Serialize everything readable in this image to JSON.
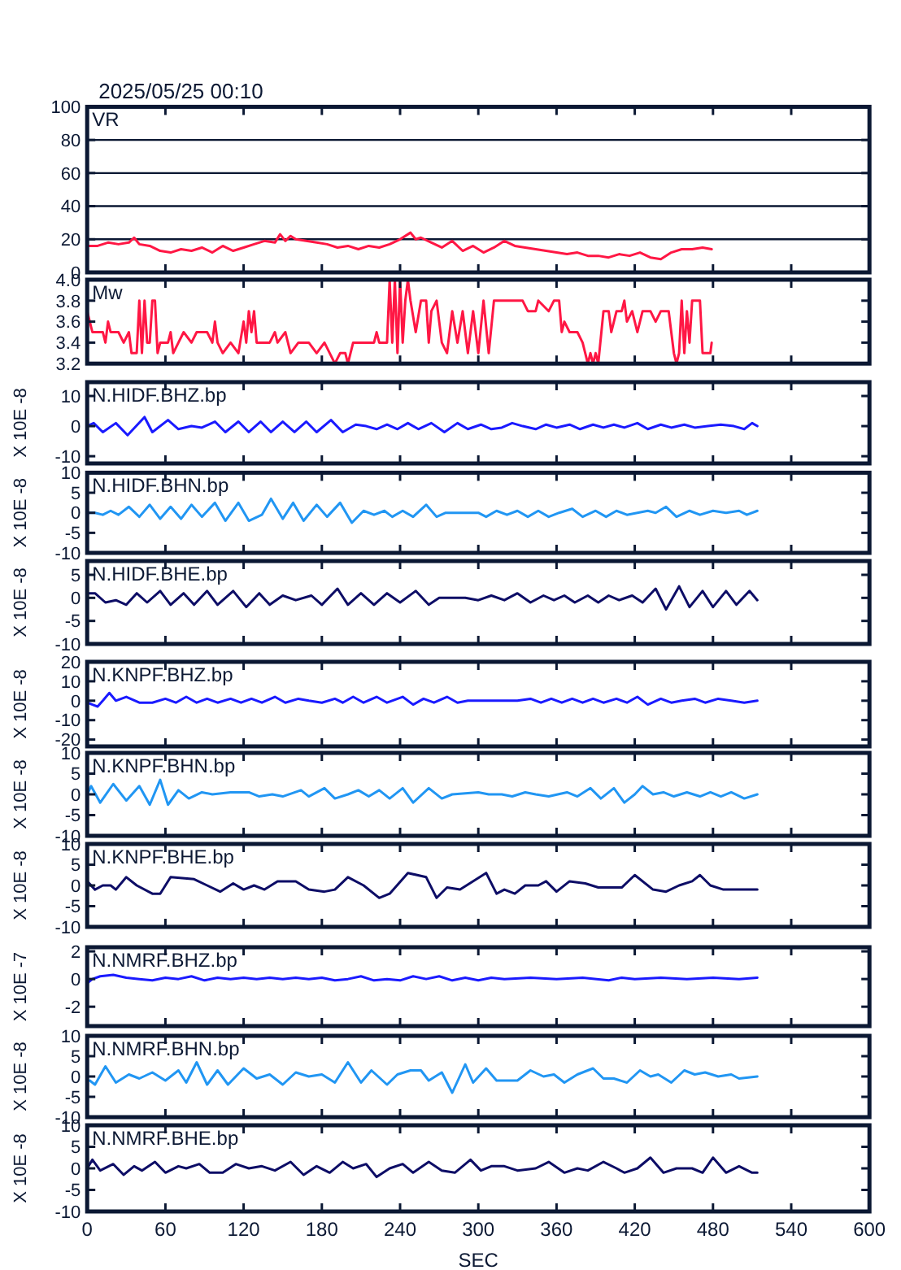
{
  "chart_data": [
    {
      "type": "line",
      "title": "2025/05/25 00:10",
      "xlim": [
        0,
        600
      ],
      "xticks": [
        0,
        60,
        120,
        180,
        240,
        300,
        360,
        420,
        480,
        540,
        600
      ],
      "ylim": [
        0,
        100
      ],
      "yticks": [
        0,
        20,
        40,
        60,
        80,
        100
      ],
      "grid": "y",
      "tick_labels": "y",
      "series": [
        {
          "name": "VR",
          "color": "#ff1744",
          "x": [
            0,
            8,
            16,
            24,
            32,
            36,
            40,
            48,
            56,
            64,
            72,
            80,
            88,
            96,
            104,
            112,
            120,
            128,
            136,
            144,
            148,
            152,
            156,
            160,
            168,
            176,
            184,
            192,
            200,
            208,
            216,
            224,
            232,
            240,
            248,
            252,
            256,
            264,
            272,
            280,
            288,
            296,
            304,
            312,
            320,
            328,
            336,
            344,
            352,
            360,
            368,
            376,
            384,
            392,
            400,
            408,
            416,
            424,
            432,
            440,
            448,
            456,
            464,
            472,
            479
          ],
          "values": [
            16,
            16,
            18,
            17,
            18,
            21,
            17,
            16,
            13,
            12,
            14,
            13,
            15,
            12,
            16,
            13,
            15,
            17,
            19,
            18,
            23,
            19,
            22,
            20,
            19,
            18,
            17,
            15,
            16,
            14,
            16,
            15,
            17,
            20,
            24,
            20,
            21,
            18,
            15,
            19,
            13,
            16,
            12,
            15,
            19,
            16,
            15,
            14,
            13,
            12,
            11,
            12,
            10,
            10,
            9,
            11,
            10,
            12,
            9,
            8,
            12,
            14,
            14,
            15,
            14
          ]
        }
      ]
    },
    {
      "type": "line",
      "xlim": [
        0,
        600
      ],
      "xticks": [
        0,
        60,
        120,
        180,
        240,
        300,
        360,
        420,
        480,
        540,
        600
      ],
      "ylim": [
        3.2,
        4.0
      ],
      "yticks": [
        3.2,
        3.4,
        3.6,
        3.8,
        {
          "value": 4.0,
          "label": "4.0"
        }
      ],
      "tick_labels": "y",
      "series": [
        {
          "name": "Mw",
          "color": "#ff1744",
          "x": [
            0,
            4,
            12,
            14,
            16,
            18,
            24,
            28,
            32,
            34,
            38,
            40,
            42,
            44,
            46,
            48,
            50,
            52,
            54,
            56,
            62,
            64,
            66,
            70,
            74,
            80,
            84,
            92,
            96,
            98,
            100,
            104,
            110,
            116,
            120,
            122,
            124,
            126,
            128,
            130,
            140,
            144,
            146,
            152,
            156,
            162,
            170,
            176,
            182,
            190,
            194,
            198,
            200,
            204,
            214,
            220,
            222,
            224,
            230,
            232,
            234,
            236,
            238,
            240,
            242,
            244,
            246,
            248,
            252,
            256,
            260,
            262,
            264,
            268,
            272,
            276,
            280,
            284,
            288,
            292,
            296,
            300,
            304,
            308,
            312,
            334,
            338,
            344,
            346,
            354,
            358,
            362,
            364,
            366,
            370,
            376,
            380,
            384,
            386,
            388,
            390,
            392,
            396,
            400,
            402,
            404,
            406,
            410,
            412,
            414,
            418,
            422,
            426,
            432,
            436,
            440,
            446,
            448,
            450,
            452,
            454,
            456,
            458,
            460,
            462,
            464,
            470,
            472,
            478,
            479
          ],
          "values": [
            3.7,
            3.5,
            3.5,
            3.4,
            3.6,
            3.5,
            3.5,
            3.4,
            3.5,
            3.3,
            3.3,
            3.8,
            3.3,
            3.8,
            3.4,
            3.4,
            3.8,
            3.8,
            3.3,
            3.4,
            3.4,
            3.5,
            3.3,
            3.4,
            3.5,
            3.4,
            3.5,
            3.5,
            3.4,
            3.6,
            3.4,
            3.3,
            3.4,
            3.3,
            3.6,
            3.4,
            3.7,
            3.5,
            3.7,
            3.4,
            3.4,
            3.5,
            3.4,
            3.5,
            3.3,
            3.4,
            3.4,
            3.3,
            3.4,
            3.2,
            3.3,
            3.3,
            3.2,
            3.4,
            3.4,
            3.4,
            3.5,
            3.4,
            3.4,
            4.0,
            3.4,
            4.0,
            3.3,
            4.0,
            3.4,
            3.8,
            4.0,
            3.8,
            3.5,
            3.8,
            3.8,
            3.4,
            3.7,
            3.8,
            3.4,
            3.3,
            3.7,
            3.4,
            3.7,
            3.3,
            3.7,
            3.3,
            3.8,
            3.3,
            3.8,
            3.8,
            3.7,
            3.7,
            3.8,
            3.7,
            3.8,
            3.8,
            3.5,
            3.6,
            3.5,
            3.5,
            3.4,
            3.2,
            3.3,
            3.2,
            3.3,
            3.2,
            3.7,
            3.7,
            3.5,
            3.6,
            3.7,
            3.7,
            3.8,
            3.6,
            3.7,
            3.5,
            3.7,
            3.7,
            3.6,
            3.7,
            3.7,
            3.5,
            3.3,
            3.2,
            3.3,
            3.8,
            3.3,
            3.7,
            3.4,
            3.8,
            3.8,
            3.3,
            3.3,
            3.4
          ]
        }
      ]
    },
    {
      "type": "line",
      "ylabel": "X 10E -8",
      "xlim": [
        0,
        600
      ],
      "xticks": [
        0,
        60,
        120,
        180,
        240,
        300,
        360,
        420,
        480,
        540,
        600
      ],
      "ylim": [
        -12.4,
        14.6
      ],
      "yticks": [
        -10,
        0,
        10
      ],
      "tick_labels": "y",
      "series": [
        {
          "name": "N.HIDF.BHZ.bp",
          "color": "#1a1aff",
          "x": [
            0,
            5,
            12,
            22,
            31,
            44,
            50,
            62,
            70,
            80,
            88,
            98,
            106,
            116,
            124,
            133,
            141,
            150,
            159,
            168,
            176,
            187,
            196,
            206,
            214,
            222,
            230,
            238,
            246,
            254,
            264,
            274,
            284,
            292,
            302,
            310,
            318,
            326,
            334,
            344,
            352,
            360,
            370,
            378,
            388,
            396,
            404,
            412,
            422,
            430,
            440,
            448,
            458,
            466,
            476,
            486,
            496,
            504,
            510,
            514
          ],
          "values": [
            0,
            1,
            -2,
            1,
            -3,
            3,
            -2,
            2,
            -1,
            0,
            -0.5,
            1.5,
            -2,
            1.5,
            -2,
            1.5,
            -2,
            1.5,
            -2,
            1.5,
            -2,
            2,
            -2,
            0.5,
            0,
            -1,
            0.5,
            -1,
            1,
            -1,
            1,
            -2,
            1,
            -1,
            0.5,
            -1,
            -0.5,
            1,
            0,
            -1,
            0.5,
            -0.5,
            0.5,
            -1,
            0.5,
            -0.5,
            0.5,
            -0.5,
            1,
            -1,
            0.5,
            -0.5,
            0.5,
            -0.5,
            0,
            0.5,
            0,
            -1,
            1,
            0
          ]
        }
      ]
    },
    {
      "type": "line",
      "ylabel": "X 10E -8",
      "xlim": [
        0,
        600
      ],
      "xticks": [
        0,
        60,
        120,
        180,
        240,
        300,
        360,
        420,
        480,
        540,
        600
      ],
      "ylim": [
        -10,
        10
      ],
      "yticks": [
        -10,
        -5,
        0,
        5,
        10
      ],
      "tick_labels": "y",
      "series": [
        {
          "name": "N.HIDF.BHN.bp",
          "color": "#2196f3",
          "x": [
            0,
            6,
            12,
            18,
            24,
            32,
            40,
            48,
            56,
            64,
            72,
            80,
            88,
            98,
            106,
            116,
            124,
            134,
            141,
            150,
            158,
            166,
            176,
            184,
            194,
            203,
            212,
            220,
            228,
            234,
            242,
            250,
            260,
            268,
            275,
            290,
            300,
            306,
            314,
            322,
            330,
            338,
            346,
            354,
            362,
            372,
            380,
            390,
            398,
            406,
            414,
            422,
            430,
            436,
            444,
            452,
            462,
            470,
            480,
            490,
            500,
            506,
            514
          ],
          "values": [
            0,
            0,
            -0.5,
            0.5,
            -0.5,
            1.5,
            -1,
            2,
            -1.5,
            1.5,
            -1.5,
            2,
            -1,
            2.5,
            -2,
            2.5,
            -2,
            -0.5,
            3.5,
            -1.5,
            2.5,
            -2,
            2,
            -1,
            2.5,
            -2.5,
            0.5,
            -0.5,
            0.5,
            -1,
            0.5,
            -1,
            2,
            -1,
            0,
            0,
            0,
            -1,
            0.5,
            -0.5,
            0.5,
            -1,
            0.5,
            -1,
            0,
            1,
            -1,
            0.5,
            -1,
            0.5,
            -0.5,
            0,
            0.5,
            0,
            1.5,
            -1,
            0.5,
            -0.5,
            0.5,
            0,
            0.5,
            -0.5,
            0.5
          ]
        }
      ]
    },
    {
      "type": "line",
      "ylabel": "X 10E -8",
      "xlim": [
        0,
        600
      ],
      "xticks": [
        0,
        60,
        120,
        180,
        240,
        300,
        360,
        420,
        480,
        540,
        600
      ],
      "ylim": [
        -10,
        8
      ],
      "yticks": [
        -10,
        -5,
        0,
        5
      ],
      "tick_labels": "y",
      "series": [
        {
          "name": "N.HIDF.BHE.bp",
          "color": "#0d0d66",
          "x": [
            0,
            6,
            14,
            22,
            30,
            38,
            46,
            56,
            64,
            74,
            82,
            92,
            100,
            112,
            122,
            132,
            140,
            150,
            160,
            172,
            180,
            192,
            200,
            210,
            220,
            230,
            240,
            252,
            262,
            270,
            290,
            300,
            310,
            320,
            330,
            340,
            350,
            358,
            366,
            374,
            384,
            392,
            400,
            408,
            418,
            426,
            436,
            444,
            454,
            462,
            472,
            480,
            490,
            498,
            508,
            514
          ],
          "values": [
            1,
            1,
            -1,
            -0.5,
            -1.5,
            1,
            -1,
            1.5,
            -1.5,
            1,
            -1.5,
            1.5,
            -1.5,
            1.5,
            -2,
            1,
            -1.5,
            0.5,
            -0.5,
            0.5,
            -1.5,
            2,
            -1.5,
            1,
            -1.5,
            1,
            -1,
            1.5,
            -1.5,
            0,
            0,
            -0.5,
            0.5,
            -0.5,
            1,
            -1,
            0.5,
            -0.5,
            0.5,
            -1,
            0.5,
            -1,
            0.5,
            -0.5,
            0.5,
            -1,
            2,
            -2.5,
            2.5,
            -2,
            1.5,
            -2,
            1.5,
            -1.5,
            1.5,
            -0.5
          ]
        }
      ]
    },
    {
      "type": "line",
      "ylabel": "X 10E -8",
      "xlim": [
        0,
        600
      ],
      "xticks": [
        0,
        60,
        120,
        180,
        240,
        300,
        360,
        420,
        480,
        540,
        600
      ],
      "ylim": [
        -23.5,
        20
      ],
      "yticks": [
        -20,
        -10,
        0,
        10,
        20
      ],
      "tick_labels": "y",
      "series": [
        {
          "name": "N.KNPF.BHZ.bp",
          "color": "#1a1aff",
          "x": [
            0,
            4,
            8,
            12,
            17,
            22,
            30,
            40,
            50,
            60,
            68,
            76,
            84,
            92,
            100,
            110,
            118,
            126,
            134,
            144,
            152,
            162,
            170,
            180,
            190,
            196,
            204,
            212,
            222,
            230,
            242,
            250,
            258,
            266,
            276,
            284,
            292,
            330,
            340,
            348,
            356,
            364,
            372,
            380,
            388,
            396,
            406,
            414,
            422,
            430,
            440,
            448,
            456,
            466,
            474,
            484,
            494,
            504,
            514
          ],
          "values": [
            -1,
            -2,
            -3,
            0,
            4,
            0,
            2,
            -1,
            -1,
            1,
            -1,
            2,
            -1,
            1,
            -1,
            1,
            -1,
            1,
            -1,
            2,
            -1,
            1,
            0,
            -1,
            1,
            -1,
            2,
            -1,
            2,
            -1,
            2,
            -2,
            1,
            -1,
            2,
            -1,
            0,
            0,
            1,
            -1,
            1,
            -1,
            1,
            -1,
            1,
            -1,
            1,
            -1,
            2,
            -2,
            1,
            -1,
            0,
            1,
            -1,
            1,
            0,
            -1,
            0
          ]
        }
      ]
    },
    {
      "type": "line",
      "ylabel": "X 10E -8",
      "xlim": [
        0,
        600
      ],
      "xticks": [
        0,
        60,
        120,
        180,
        240,
        300,
        360,
        420,
        480,
        540,
        600
      ],
      "ylim": [
        -10,
        10
      ],
      "yticks": [
        -10,
        -5,
        0,
        5,
        10
      ],
      "tick_labels": "y",
      "series": [
        {
          "name": "N.KNPF.BHN.bp",
          "color": "#2196f3",
          "x": [
            0,
            3,
            10,
            20,
            30,
            40,
            48,
            56,
            62,
            70,
            78,
            88,
            96,
            110,
            124,
            132,
            142,
            150,
            164,
            170,
            182,
            190,
            200,
            208,
            216,
            224,
            232,
            242,
            250,
            262,
            272,
            280,
            300,
            308,
            318,
            326,
            336,
            344,
            354,
            368,
            376,
            386,
            394,
            404,
            412,
            420,
            426,
            434,
            442,
            450,
            460,
            470,
            478,
            486,
            494,
            504,
            514
          ],
          "values": [
            0,
            2,
            -2,
            2.5,
            -1.5,
            2,
            -2.5,
            3.5,
            -2.5,
            1,
            -1,
            0.5,
            0,
            0.5,
            0.5,
            -0.5,
            0,
            -0.5,
            1,
            -0.5,
            1.5,
            -1,
            0,
            1,
            -0.5,
            1,
            -1,
            1.5,
            -2,
            1.5,
            -1,
            0,
            0.5,
            0,
            0,
            -0.5,
            0.5,
            0,
            -0.5,
            0.5,
            -0.5,
            1.5,
            -1,
            1.5,
            -2,
            0,
            2,
            0,
            0.5,
            -0.5,
            0.5,
            -0.5,
            0.5,
            -0.5,
            0.5,
            -1,
            0
          ]
        }
      ]
    },
    {
      "type": "line",
      "ylabel": "X 10E -8",
      "xlim": [
        0,
        600
      ],
      "xticks": [
        0,
        60,
        120,
        180,
        240,
        300,
        360,
        420,
        480,
        540,
        600
      ],
      "ylim": [
        -10,
        10
      ],
      "yticks": [
        -10,
        -5,
        0,
        5,
        10
      ],
      "tick_labels": "y",
      "series": [
        {
          "name": "N.KNPF.BHE.bp",
          "color": "#0d0d66",
          "x": [
            0,
            6,
            12,
            18,
            22,
            30,
            38,
            50,
            56,
            64,
            82,
            92,
            102,
            112,
            120,
            128,
            136,
            146,
            160,
            170,
            182,
            190,
            200,
            212,
            224,
            232,
            246,
            260,
            268,
            276,
            286,
            306,
            314,
            320,
            328,
            336,
            346,
            352,
            360,
            370,
            382,
            392,
            402,
            410,
            420,
            434,
            444,
            454,
            464,
            470,
            478,
            488,
            500,
            514
          ],
          "values": [
            1,
            -1,
            0,
            0,
            -1,
            2,
            0,
            -2,
            -2,
            2,
            1.5,
            0,
            -1.5,
            0.5,
            -1,
            0,
            -1,
            1,
            1,
            -1,
            -1.5,
            -1,
            2,
            0,
            -3,
            -2,
            3,
            2,
            -3,
            -0.5,
            -1,
            3,
            -2,
            -1,
            -2,
            0,
            0,
            1,
            -1.5,
            1,
            0.5,
            -0.5,
            -0.5,
            -0.5,
            2.5,
            -1,
            -1.5,
            0,
            1,
            2.5,
            0,
            -1,
            -1,
            -1
          ]
        }
      ]
    },
    {
      "type": "line",
      "ylabel": "X 10E -7",
      "xlim": [
        0,
        600
      ],
      "xticks": [
        0,
        60,
        120,
        180,
        240,
        300,
        360,
        420,
        480,
        540,
        600
      ],
      "ylim": [
        -3.4,
        2.3
      ],
      "yticks": [
        -2,
        0,
        2
      ],
      "tick_labels": "y",
      "series": [
        {
          "name": "N.NMRF.BHZ.bp",
          "color": "#1a1aff",
          "x": [
            0,
            4,
            10,
            20,
            30,
            40,
            50,
            60,
            70,
            80,
            90,
            100,
            110,
            120,
            130,
            140,
            150,
            160,
            170,
            180,
            190,
            200,
            210,
            220,
            230,
            240,
            250,
            260,
            270,
            280,
            290,
            300,
            310,
            320,
            340,
            360,
            380,
            400,
            410,
            420,
            440,
            460,
            480,
            500,
            514
          ],
          "values": [
            -0.3,
            0,
            0.2,
            0.3,
            0.1,
            0,
            -0.1,
            0.1,
            0,
            0.2,
            -0.1,
            0.1,
            0,
            0.1,
            0,
            0.1,
            0,
            0.1,
            0,
            0.1,
            -0.1,
            0,
            0.2,
            -0.1,
            0,
            -0.1,
            0.2,
            0,
            0.2,
            -0.1,
            0.1,
            -0.1,
            0.1,
            0,
            0.1,
            0,
            0.1,
            -0.1,
            0.1,
            0,
            0.1,
            0,
            0.1,
            0,
            0.1
          ]
        }
      ]
    },
    {
      "type": "line",
      "ylabel": "X 10E -8",
      "xlim": [
        0,
        600
      ],
      "xticks": [
        0,
        60,
        120,
        180,
        240,
        300,
        360,
        420,
        480,
        540,
        600
      ],
      "ylim": [
        -10,
        10
      ],
      "yticks": [
        -10,
        -5,
        0,
        5,
        10
      ],
      "tick_labels": "y",
      "series": [
        {
          "name": "N.NMRF.BHN.bp",
          "color": "#2196f3",
          "x": [
            2,
            6,
            14,
            22,
            32,
            40,
            50,
            60,
            70,
            76,
            84,
            92,
            100,
            108,
            120,
            130,
            140,
            150,
            160,
            170,
            180,
            190,
            200,
            210,
            218,
            230,
            238,
            248,
            256,
            262,
            272,
            280,
            290,
            296,
            306,
            314,
            330,
            340,
            350,
            358,
            366,
            376,
            388,
            396,
            404,
            414,
            424,
            432,
            438,
            448,
            458,
            466,
            474,
            484,
            494,
            500,
            514
          ],
          "values": [
            -1,
            -2,
            2.5,
            -1.5,
            0.5,
            -0.5,
            1,
            -1,
            1.5,
            -1.5,
            3.5,
            -2,
            1.5,
            -2,
            2,
            -0.5,
            0.5,
            -2,
            1,
            0,
            0.5,
            -1.5,
            3.5,
            -1.5,
            1.5,
            -2,
            0.5,
            1.5,
            1.5,
            -1,
            1,
            -4,
            3,
            -1.5,
            2,
            -1,
            -1,
            1.5,
            0,
            0.5,
            -1.5,
            0.5,
            2,
            -0.5,
            -0.5,
            -1.5,
            1.5,
            0,
            0.5,
            -1.5,
            1.5,
            0.5,
            1,
            0,
            0.5,
            -0.5,
            0
          ]
        }
      ]
    },
    {
      "type": "line",
      "ylabel": "X 10E -8",
      "xlabel": "SEC",
      "xlim": [
        0,
        600
      ],
      "xticks": [
        0,
        60,
        120,
        180,
        240,
        300,
        360,
        420,
        480,
        540,
        600
      ],
      "ylim": [
        -10,
        10
      ],
      "yticks": [
        -10,
        -5,
        0,
        5,
        10
      ],
      "series": [
        {
          "name": "N.NMRF.BHE.bp",
          "color": "#0d0d66",
          "x": [
            0,
            4,
            10,
            20,
            28,
            36,
            42,
            52,
            60,
            70,
            76,
            86,
            94,
            104,
            114,
            124,
            134,
            144,
            156,
            166,
            176,
            186,
            196,
            204,
            214,
            222,
            232,
            242,
            250,
            262,
            272,
            282,
            294,
            302,
            310,
            320,
            330,
            344,
            354,
            366,
            376,
            384,
            396,
            406,
            412,
            422,
            432,
            442,
            452,
            464,
            472,
            480,
            490,
            500,
            510,
            514
          ],
          "values": [
            0,
            2,
            -0.5,
            1,
            -1.5,
            0.5,
            -0.5,
            1.5,
            -1,
            0.5,
            0,
            1,
            -1,
            -1,
            1,
            0,
            0.5,
            -0.5,
            1.5,
            -1.5,
            0.5,
            -1,
            1.5,
            0,
            1,
            -2,
            0,
            1,
            -1,
            1.5,
            -0.5,
            -1,
            2,
            -0.5,
            0.5,
            0.5,
            -0.5,
            0,
            1.5,
            -1,
            0,
            -0.5,
            1.5,
            0,
            -1,
            0,
            2.5,
            -1,
            0,
            0,
            -1,
            2.5,
            -1,
            0.5,
            -1,
            -1
          ]
        }
      ]
    }
  ]
}
